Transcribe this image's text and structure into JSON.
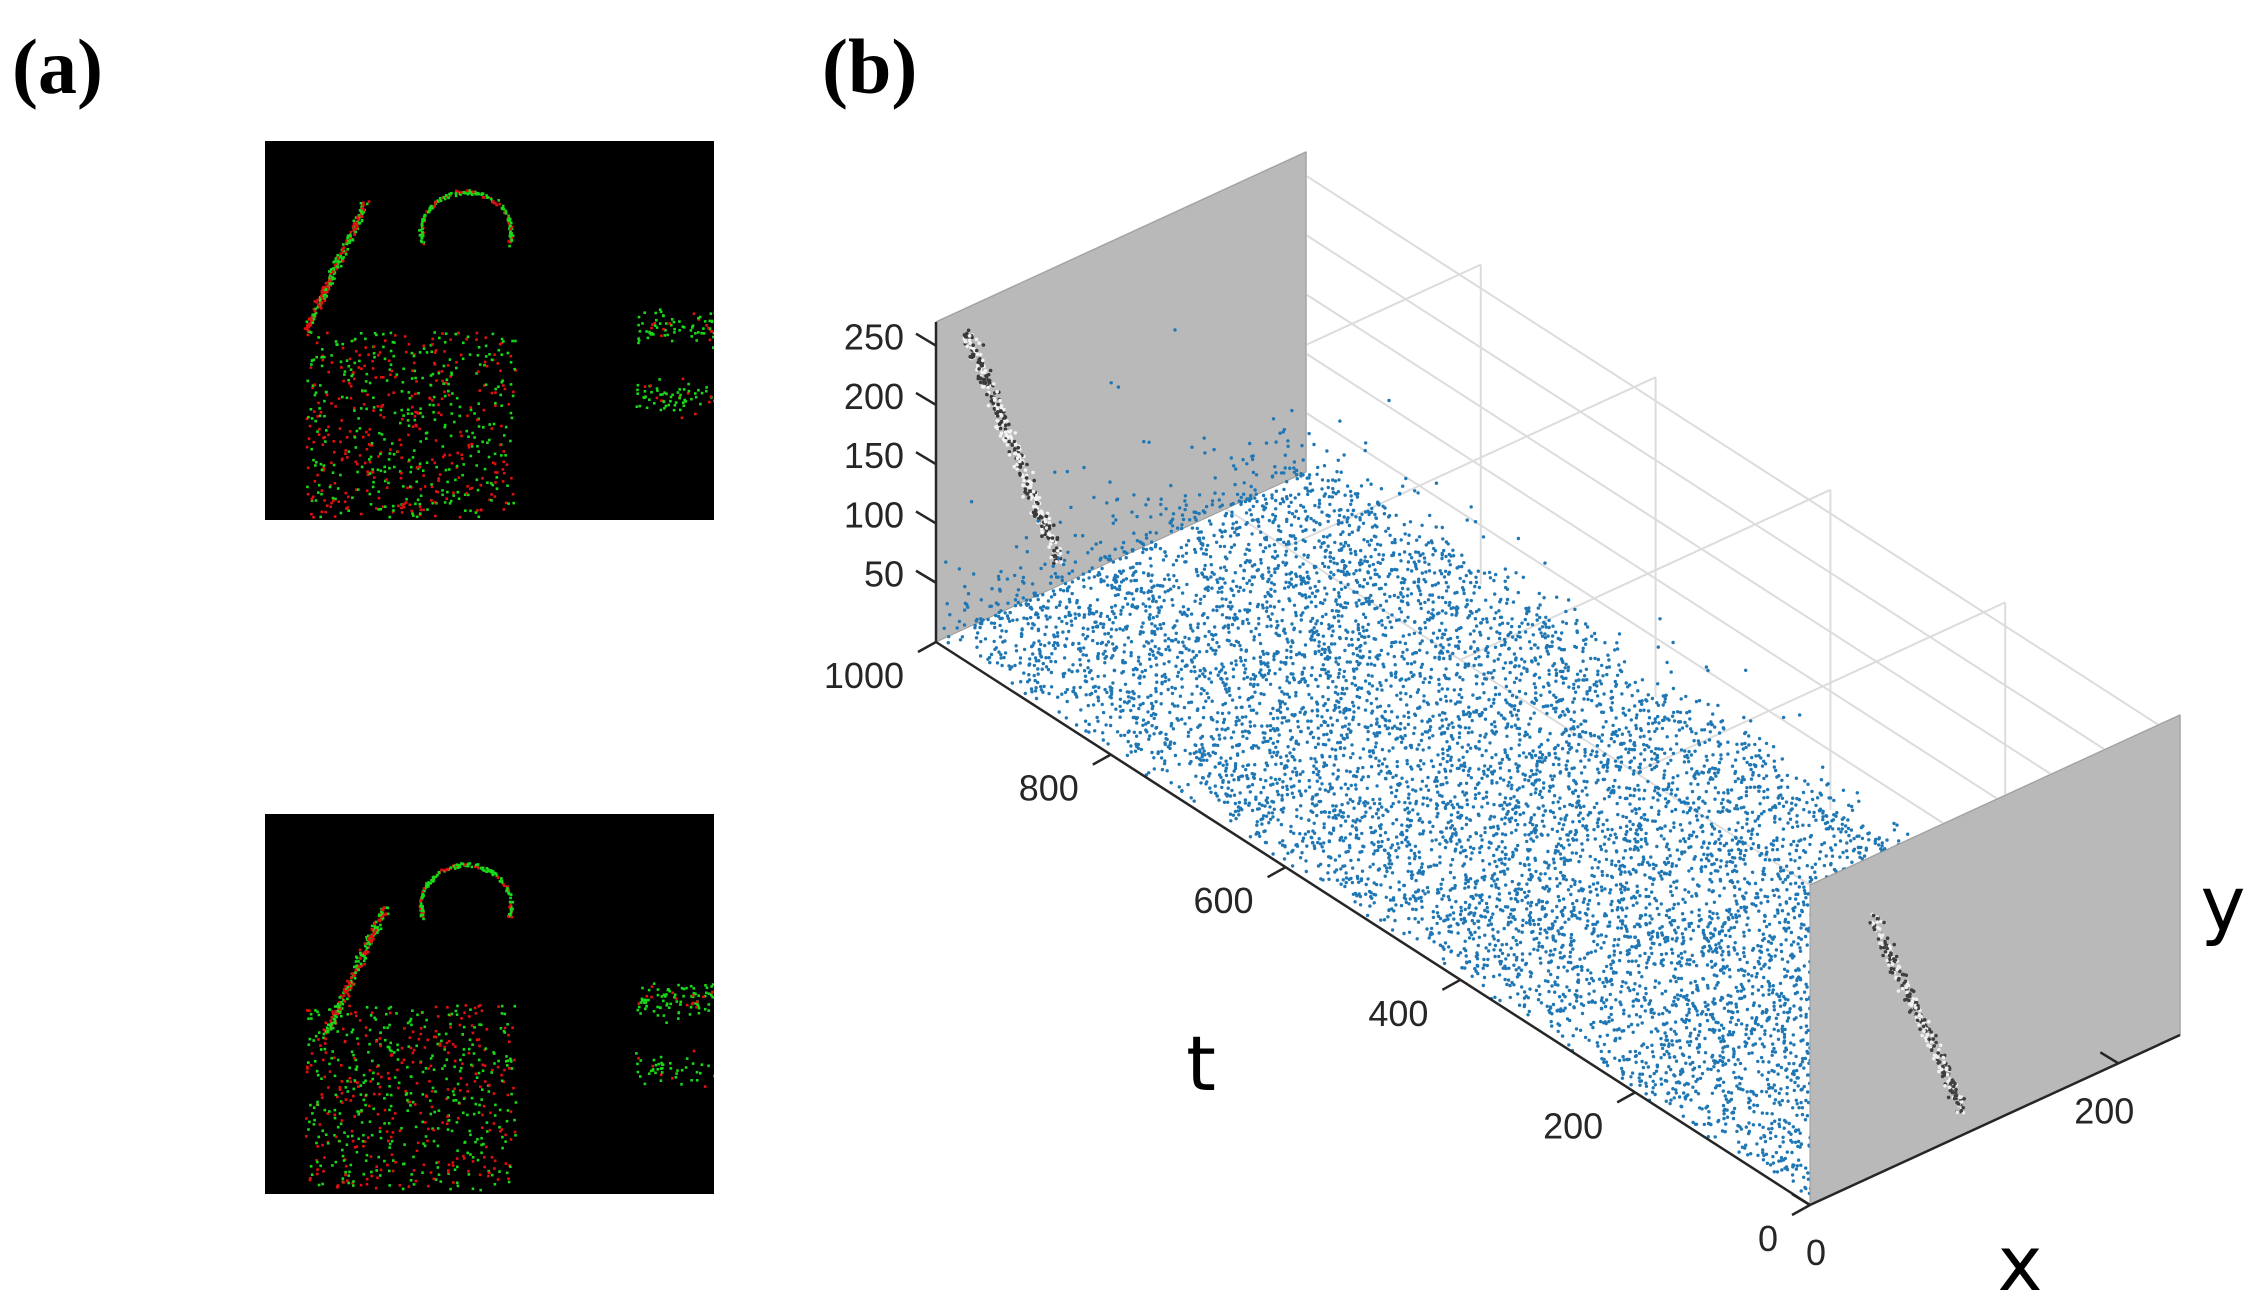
{
  "panels": {
    "a": {
      "label": "(a)",
      "frames": [
        "event-frame-1",
        "event-frame-2"
      ]
    },
    "b": {
      "label": "(b)"
    }
  },
  "colors": {
    "on_event": "#18d818",
    "off_event": "#e01010",
    "frame_background": "#000000",
    "point_cloud": "#1f77b4",
    "projection_plane": "#b9b9b9",
    "gridline": "#dcdcdc"
  },
  "chart_data": {
    "type": "scatter",
    "projection": "3d",
    "axes": {
      "x": {
        "label": "x",
        "ticks": [
          0,
          200
        ],
        "range": [
          0,
          240
        ]
      },
      "t": {
        "label": "t",
        "ticks": [
          0,
          200,
          400,
          600,
          800,
          1000
        ],
        "range": [
          0,
          1000
        ]
      },
      "y": {
        "label": "y",
        "ticks": [
          50,
          100,
          150,
          200,
          250
        ],
        "range": [
          0,
          270
        ]
      }
    },
    "grid": true,
    "series": [
      {
        "points": "event point cloud (x, t, y)",
        "approx_count": 9000
      }
    ],
    "projections": [
      "y-t plane at x = 0",
      "x-y plane at t = 0"
    ]
  }
}
